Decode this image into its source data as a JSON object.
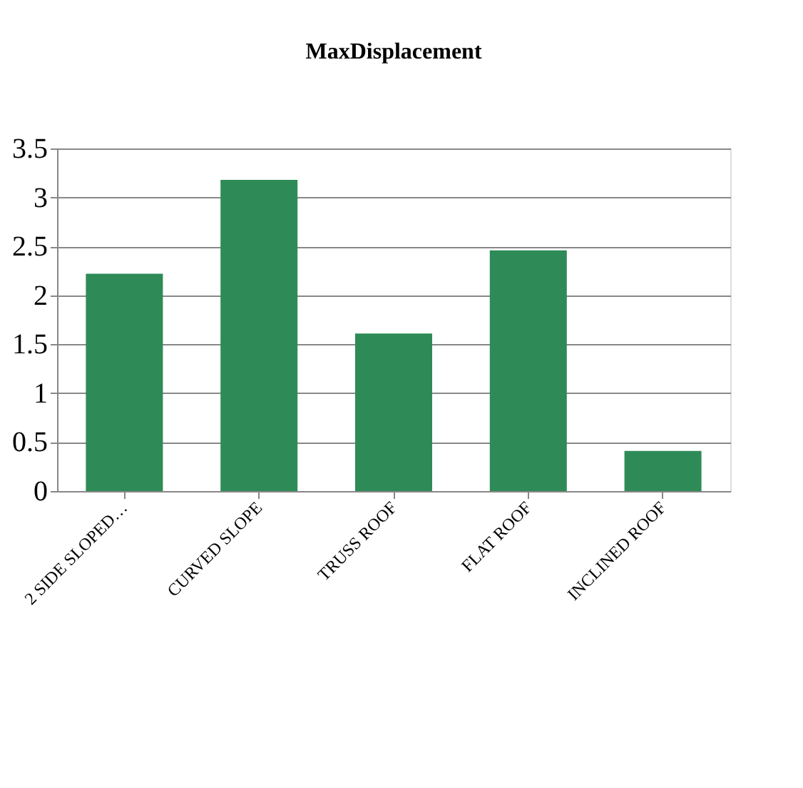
{
  "chart_data": {
    "type": "bar",
    "title": "MaxDisplacement",
    "categories": [
      "2 SIDE SLOPED…",
      "CURVED SLOPE",
      "TRUSS ROOF",
      "FLAT ROOF",
      "INCLINED ROOF"
    ],
    "values": [
      2.22,
      3.18,
      1.61,
      2.46,
      0.41
    ],
    "color": "#2e8b57",
    "ylim": [
      0,
      3.5
    ],
    "yticks": [
      0,
      0.5,
      1,
      1.5,
      2,
      2.5,
      3,
      3.5
    ],
    "grid": "y"
  }
}
